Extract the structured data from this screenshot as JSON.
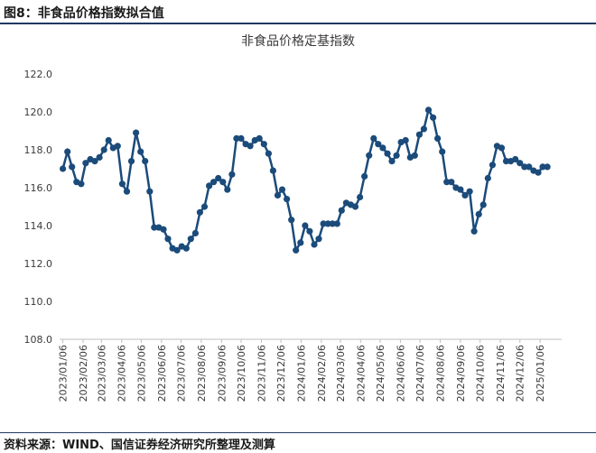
{
  "figure_label": "图8：非食品价格指数拟合值",
  "source_note": "资料来源：WIND、国信证券经济研究所整理及测算",
  "colors": {
    "line": "#1b4b7a",
    "marker": "#1b4b7a",
    "axis": "#bfbfbf",
    "text": "#3a3a3a",
    "rule": "#1f3a63"
  },
  "chart_data": {
    "type": "line",
    "title": "非食品价格定基指数",
    "xlabel": "",
    "ylabel": "",
    "ylim": [
      108,
      122
    ],
    "yticks": [
      "108.0",
      "110.0",
      "112.0",
      "114.0",
      "116.0",
      "118.0",
      "120.0",
      "122.0"
    ],
    "grid": false,
    "legend": "none",
    "xtick_labels": [
      "2023/01/06",
      "2023/02/06",
      "2023/03/06",
      "2023/04/06",
      "2023/05/06",
      "2023/06/06",
      "2023/07/06",
      "2023/08/06",
      "2023/09/06",
      "2023/10/06",
      "2023/11/06",
      "2023/12/06",
      "2024/01/06",
      "2024/02/06",
      "2024/03/06",
      "2024/04/06",
      "2024/05/06",
      "2024/06/06",
      "2024/07/06",
      "2024/08/06",
      "2024/09/06",
      "2024/10/06",
      "2024/11/06",
      "2024/12/06",
      "2025/01/06"
    ],
    "x_range": [
      "2023-01-01",
      "2025-02-08"
    ],
    "series": [
      {
        "points": [
          [
            "2023-01-06",
            117.0
          ],
          [
            "2023-01-13",
            117.9
          ],
          [
            "2023-01-20",
            117.1
          ],
          [
            "2023-01-27",
            116.3
          ],
          [
            "2023-02-03",
            116.2
          ],
          [
            "2023-02-10",
            117.3
          ],
          [
            "2023-02-17",
            117.5
          ],
          [
            "2023-02-24",
            117.4
          ],
          [
            "2023-03-03",
            117.6
          ],
          [
            "2023-03-10",
            118.0
          ],
          [
            "2023-03-17",
            118.5
          ],
          [
            "2023-03-24",
            118.1
          ],
          [
            "2023-03-31",
            118.2
          ],
          [
            "2023-04-07",
            116.2
          ],
          [
            "2023-04-14",
            115.8
          ],
          [
            "2023-04-21",
            117.4
          ],
          [
            "2023-04-28",
            118.9
          ],
          [
            "2023-05-05",
            117.9
          ],
          [
            "2023-05-12",
            117.4
          ],
          [
            "2023-05-19",
            115.8
          ],
          [
            "2023-05-26",
            113.9
          ],
          [
            "2023-06-02",
            113.9
          ],
          [
            "2023-06-09",
            113.8
          ],
          [
            "2023-06-16",
            113.3
          ],
          [
            "2023-06-23",
            112.8
          ],
          [
            "2023-06-30",
            112.7
          ],
          [
            "2023-07-07",
            112.9
          ],
          [
            "2023-07-14",
            112.8
          ],
          [
            "2023-07-21",
            113.3
          ],
          [
            "2023-07-28",
            113.6
          ],
          [
            "2023-08-04",
            114.7
          ],
          [
            "2023-08-11",
            115.0
          ],
          [
            "2023-08-18",
            116.1
          ],
          [
            "2023-08-25",
            116.3
          ],
          [
            "2023-09-01",
            116.5
          ],
          [
            "2023-09-08",
            116.3
          ],
          [
            "2023-09-15",
            115.9
          ],
          [
            "2023-09-22",
            116.7
          ],
          [
            "2023-09-29",
            118.6
          ],
          [
            "2023-10-06",
            118.6
          ],
          [
            "2023-10-13",
            118.3
          ],
          [
            "2023-10-20",
            118.2
          ],
          [
            "2023-10-27",
            118.5
          ],
          [
            "2023-11-03",
            118.6
          ],
          [
            "2023-11-10",
            118.3
          ],
          [
            "2023-11-17",
            117.8
          ],
          [
            "2023-11-24",
            116.9
          ],
          [
            "2023-12-01",
            115.6
          ],
          [
            "2023-12-08",
            115.9
          ],
          [
            "2023-12-15",
            115.4
          ],
          [
            "2023-12-22",
            114.3
          ],
          [
            "2023-12-29",
            112.7
          ],
          [
            "2024-01-05",
            113.1
          ],
          [
            "2024-01-12",
            114.0
          ],
          [
            "2024-01-19",
            113.7
          ],
          [
            "2024-01-26",
            113.0
          ],
          [
            "2024-02-02",
            113.3
          ],
          [
            "2024-02-09",
            114.1
          ],
          [
            "2024-02-16",
            114.1
          ],
          [
            "2024-02-23",
            114.1
          ],
          [
            "2024-03-01",
            114.1
          ],
          [
            "2024-03-08",
            114.8
          ],
          [
            "2024-03-15",
            115.2
          ],
          [
            "2024-03-22",
            115.1
          ],
          [
            "2024-03-29",
            115.0
          ],
          [
            "2024-04-05",
            115.5
          ],
          [
            "2024-04-12",
            116.6
          ],
          [
            "2024-04-19",
            117.7
          ],
          [
            "2024-04-26",
            118.6
          ],
          [
            "2024-05-03",
            118.3
          ],
          [
            "2024-05-10",
            118.1
          ],
          [
            "2024-05-17",
            117.8
          ],
          [
            "2024-05-24",
            117.4
          ],
          [
            "2024-05-31",
            117.7
          ],
          [
            "2024-06-07",
            118.4
          ],
          [
            "2024-06-14",
            118.5
          ],
          [
            "2024-06-21",
            117.6
          ],
          [
            "2024-06-28",
            117.7
          ],
          [
            "2024-07-05",
            118.8
          ],
          [
            "2024-07-12",
            119.1
          ],
          [
            "2024-07-19",
            120.1
          ],
          [
            "2024-07-26",
            119.7
          ],
          [
            "2024-08-02",
            118.6
          ],
          [
            "2024-08-09",
            117.9
          ],
          [
            "2024-08-16",
            116.3
          ],
          [
            "2024-08-23",
            116.3
          ],
          [
            "2024-08-30",
            116.0
          ],
          [
            "2024-09-06",
            115.9
          ],
          [
            "2024-09-13",
            115.6
          ],
          [
            "2024-09-20",
            115.8
          ],
          [
            "2024-09-27",
            113.7
          ],
          [
            "2024-10-04",
            114.6
          ],
          [
            "2024-10-11",
            115.1
          ],
          [
            "2024-10-18",
            116.5
          ],
          [
            "2024-10-25",
            117.2
          ],
          [
            "2024-11-01",
            118.2
          ],
          [
            "2024-11-08",
            118.1
          ],
          [
            "2024-11-15",
            117.4
          ],
          [
            "2024-11-22",
            117.4
          ],
          [
            "2024-11-29",
            117.5
          ],
          [
            "2024-12-06",
            117.3
          ],
          [
            "2024-12-13",
            117.1
          ],
          [
            "2024-12-20",
            117.1
          ],
          [
            "2024-12-27",
            116.9
          ],
          [
            "2025-01-03",
            116.8
          ],
          [
            "2025-01-10",
            117.1
          ],
          [
            "2025-01-17",
            117.1
          ]
        ]
      }
    ]
  }
}
